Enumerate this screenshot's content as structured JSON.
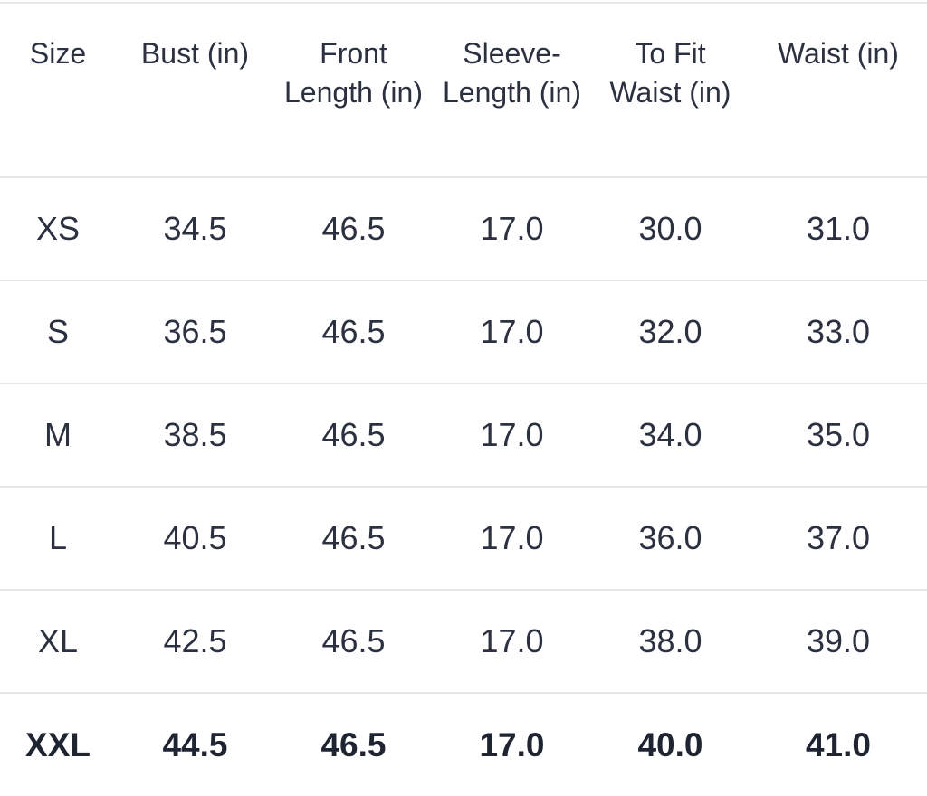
{
  "size_chart": {
    "headers": [
      "Size",
      "Bust (in)",
      "Front Length (in)",
      "Sleeve-Length (in)",
      "To Fit Waist (in)",
      "Waist (in)"
    ],
    "rows": [
      [
        "XS",
        "34.5",
        "46.5",
        "17.0",
        "30.0",
        "31.0"
      ],
      [
        "S",
        "36.5",
        "46.5",
        "17.0",
        "32.0",
        "33.0"
      ],
      [
        "M",
        "38.5",
        "46.5",
        "17.0",
        "34.0",
        "35.0"
      ],
      [
        "L",
        "40.5",
        "46.5",
        "17.0",
        "36.0",
        "37.0"
      ],
      [
        "XL",
        "42.5",
        "46.5",
        "17.0",
        "38.0",
        "39.0"
      ],
      [
        "XXL",
        "44.5",
        "46.5",
        "17.0",
        "40.0",
        "41.0"
      ]
    ],
    "colors": {
      "text": "#2b3141",
      "divider": "#e6e7ea",
      "background": "#ffffff"
    }
  }
}
